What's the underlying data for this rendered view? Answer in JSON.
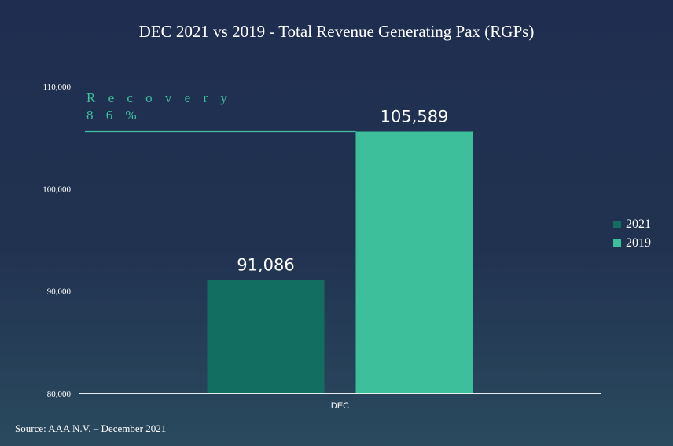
{
  "chart_data": {
    "type": "bar",
    "title": "DEC 2021 vs 2019 - Total Revenue Generating Pax (RGPs)",
    "categories": [
      "DEC"
    ],
    "series": [
      {
        "name": "2021",
        "values": [
          91086
        ],
        "color": "#136e62"
      },
      {
        "name": "2019",
        "values": [
          105589
        ],
        "color": "#3dbf9c"
      }
    ],
    "data_labels": [
      "91,086",
      "105,589"
    ],
    "ylim": [
      80000,
      110000
    ],
    "yticks": [
      80000,
      90000,
      100000,
      110000
    ],
    "ytick_labels": [
      "80,000",
      "90,000",
      "100,000",
      "110,000"
    ],
    "legend_position": "right",
    "grid": false,
    "annotation": {
      "line1": "R e c o v e r y",
      "line2": "8 6 %",
      "color": "#3fbf9d"
    }
  },
  "source": "Source: AAA N.V. – December 2021"
}
